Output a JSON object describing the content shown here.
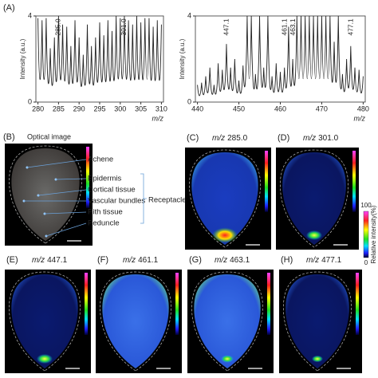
{
  "panel_a": {
    "label": "(A)",
    "charts": [
      {
        "type": "line",
        "y_label": "Intensity (a.u.)",
        "x_label": "m/z",
        "x": [
          280,
          281,
          282,
          283,
          284,
          285,
          286,
          287,
          288,
          289,
          290,
          291,
          292,
          293,
          294,
          295,
          296,
          297,
          298,
          299,
          300,
          301,
          302,
          303,
          304,
          305,
          306,
          307,
          308,
          309,
          310
        ],
        "values": [
          3.9,
          3.8,
          3.9,
          2.5,
          3.0,
          4,
          3.6,
          3.5,
          2.6,
          3.8,
          3.0,
          2.2,
          3.6,
          2.6,
          3.0,
          3.7,
          3.1,
          3.8,
          3.3,
          4,
          3.9,
          4,
          3.8,
          3.6,
          4,
          3.7,
          3.9,
          3.9,
          3.5,
          3.8,
          3.6
        ],
        "xlim": [
          279.5,
          310.5
        ],
        "xticks": [
          280,
          285,
          290,
          295,
          300,
          305,
          310
        ],
        "ylim": [
          0,
          4
        ],
        "yticks": [
          0,
          4
        ],
        "annotations": [
          "285.0",
          "301.0"
        ]
      },
      {
        "type": "line",
        "y_label": "Intensity (a.u.)",
        "x_label": "m/z",
        "x": [
          440,
          441,
          442,
          443,
          444,
          445,
          446,
          447,
          448,
          449,
          450,
          451,
          452,
          453,
          454,
          455,
          456,
          457,
          458,
          459,
          460,
          461,
          462,
          463,
          464,
          465,
          466,
          467,
          468,
          469,
          470,
          471,
          472,
          473,
          474,
          475,
          476,
          477,
          478,
          479,
          480
        ],
        "values": [
          0.8,
          0.9,
          1.2,
          1.6,
          0.8,
          1.8,
          1.5,
          2.7,
          1.6,
          2.0,
          1.0,
          1.7,
          4,
          4,
          1.3,
          4,
          1.6,
          4,
          1.2,
          1.8,
          1.4,
          1.6,
          3.5,
          2.0,
          4,
          4,
          4,
          4,
          4,
          4,
          4,
          4,
          4,
          2.8,
          4,
          1.3,
          2.0,
          2.6,
          1.6,
          1.5,
          1.2
        ],
        "xlim": [
          439.5,
          480.5
        ],
        "xticks": [
          440,
          450,
          460,
          470,
          480
        ],
        "ylim": [
          0,
          4
        ],
        "yticks": [
          0,
          4
        ],
        "annotations": [
          "447.1",
          "461.1",
          "463.1",
          "477.1"
        ]
      }
    ]
  },
  "panel_b": {
    "label": "(B)",
    "title": "Optical image",
    "labels": [
      "Achene",
      "Epidermis",
      "Cortical tissue",
      "Vascular bundles",
      "Pith tissue",
      "Peduncle"
    ],
    "group": "Receptacle"
  },
  "images": [
    {
      "label": "(C)",
      "mz": "m/z",
      "value": "285.0"
    },
    {
      "label": "(D)",
      "mz": "m/z",
      "value": "301.0"
    },
    {
      "label": "(E)",
      "mz": "m/z",
      "value": "447.1"
    },
    {
      "label": "(F)",
      "mz": "m/z",
      "value": "461.1"
    },
    {
      "label": "(G)",
      "mz": "m/z",
      "value": "463.1"
    },
    {
      "label": "(H)",
      "mz": "m/z",
      "value": "477.1"
    }
  ],
  "colorbar": {
    "title": "Relative intensity(%)",
    "max": "100",
    "min": "0"
  }
}
